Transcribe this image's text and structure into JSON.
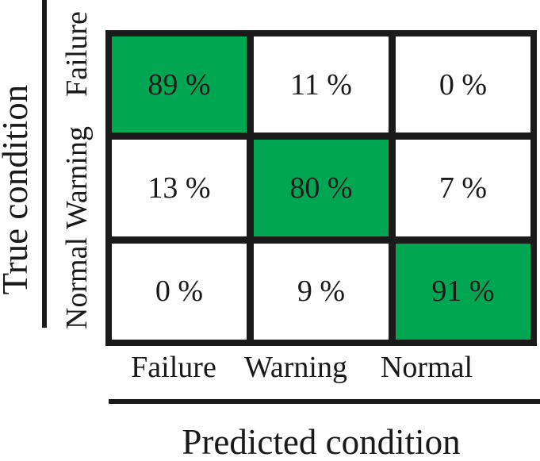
{
  "colors": {
    "highlight_green": "#00a651",
    "line_black": "#1a1a1a",
    "background": "#ffffff"
  },
  "chart_data": {
    "type": "heatmap",
    "subtype": "confusion-matrix",
    "title": "",
    "xlabel": "Predicted condition",
    "ylabel": "True condition",
    "x_categories": [
      "Failure",
      "Warning",
      "Normal"
    ],
    "y_categories": [
      "Failure",
      "Warning",
      "Normal"
    ],
    "values_percent": [
      [
        89,
        11,
        0
      ],
      [
        13,
        80,
        7
      ],
      [
        0,
        9,
        91
      ]
    ],
    "cell_labels": [
      [
        "89 %",
        "11 %",
        "0 %"
      ],
      [
        "13 %",
        "80 %",
        "7 %"
      ],
      [
        "0 %",
        "9 %",
        "91 %"
      ]
    ],
    "highlighted_cells": [
      [
        0,
        0
      ],
      [
        1,
        1
      ],
      [
        2,
        2
      ]
    ],
    "legend": "none",
    "grid": "thick black cell borders, white off-diagonal cells, green diagonal cells"
  }
}
